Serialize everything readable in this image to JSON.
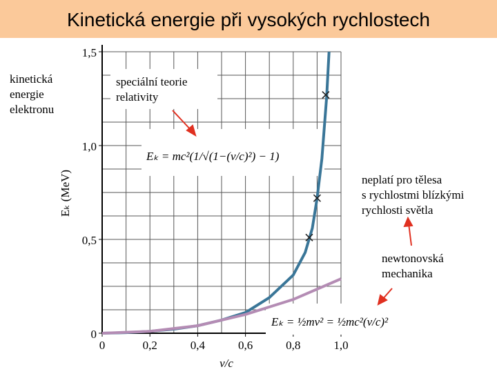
{
  "title": "Kinetická energie při vysokých rychlostech",
  "chart_data": {
    "type": "line",
    "x_label": "v/c",
    "y_label": "Eₖ (MeV)",
    "xlim": [
      0,
      1.0
    ],
    "ylim": [
      0,
      1.5
    ],
    "xticks": [
      0,
      {
        "value": 0.2,
        "label": "0,2"
      },
      {
        "value": 0.4,
        "label": "0,4"
      },
      {
        "value": 0.6,
        "label": "0,6"
      },
      {
        "value": 0.8,
        "label": "0,8"
      },
      {
        "value": 1.0,
        "label": "1,0"
      }
    ],
    "yticks": [
      0,
      {
        "value": 0.5,
        "label": "0,5"
      },
      {
        "value": 1.0,
        "label": "1,0"
      },
      {
        "value": 1.5,
        "label": "1,5"
      }
    ],
    "grid": true,
    "xgrid": [
      0.1,
      0.2,
      0.3,
      0.4,
      0.5,
      0.6,
      0.7,
      0.8,
      0.9,
      1.0
    ],
    "ygrid": [
      0.125,
      0.25,
      0.375,
      0.5,
      0.625,
      0.75,
      0.875,
      1.0,
      1.125,
      1.25,
      1.375,
      1.5
    ],
    "series": [
      {
        "color": "#3a7698",
        "x": [
          0,
          0.1,
          0.2,
          0.3,
          0.4,
          0.5,
          0.6,
          0.7,
          0.8,
          0.85,
          0.88,
          0.9,
          0.92,
          0.94,
          0.95
        ],
        "values": [
          0,
          0.003,
          0.01,
          0.022,
          0.04,
          0.07,
          0.11,
          0.19,
          0.31,
          0.43,
          0.56,
          0.72,
          0.93,
          1.26,
          1.5
        ]
      },
      {
        "color": "#b48cb4",
        "x": [
          0,
          0.2,
          0.4,
          0.6,
          0.8,
          1.0
        ],
        "values": [
          0,
          0.01,
          0.04,
          0.1,
          0.18,
          0.29
        ]
      }
    ],
    "points": {
      "color": "#222222",
      "x": [
        0.867,
        0.9,
        0.936
      ],
      "values": [
        0.51,
        0.72,
        1.27
      ]
    }
  },
  "annotations": {
    "electron": [
      "kinetická",
      "energie",
      "elektronu"
    ],
    "relativity": [
      "speciální teorie",
      "relativity"
    ],
    "relativity_formula": "Eₖ = mc²(1/√(1−(v/c)²) − 1)",
    "limit": [
      "neplatí pro tělesa",
      "s rychlostmi blízkými",
      "rychlosti světla"
    ],
    "newton": [
      "newtonovská",
      "mechanika"
    ],
    "newton_formula": "Eₖ = ½mv² = ½mc²(v/c)²"
  }
}
